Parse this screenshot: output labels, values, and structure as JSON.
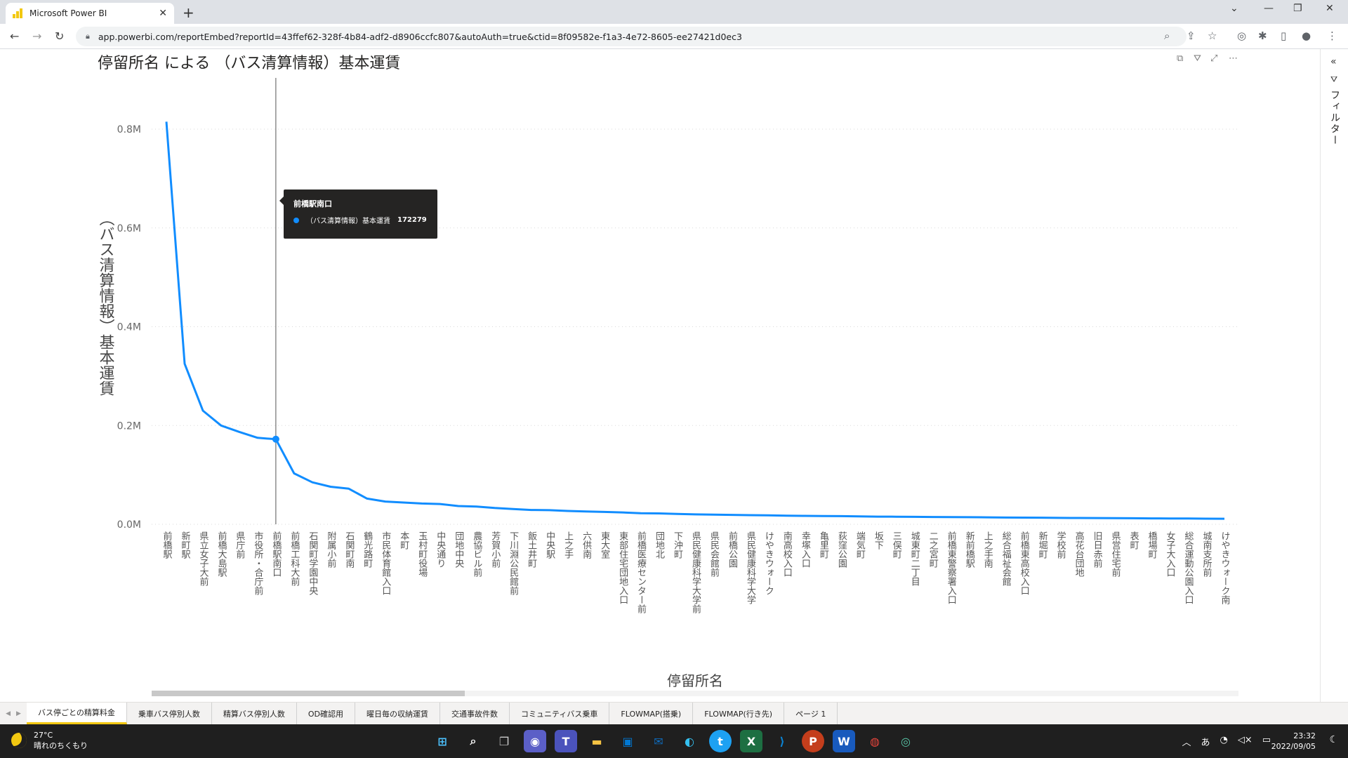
{
  "browser": {
    "tab_title": "Microsoft Power BI",
    "tab_close": "✕",
    "new_tab": "+",
    "url": "app.powerbi.com/reportEmbed?reportId=43ffef62-328f-4b84-adf2-d8906ccfc807&autoAuth=true&ctid=8f09582e-f1a3-4e72-8605-ee27421d0ec3"
  },
  "report": {
    "filter_label": "フィルター"
  },
  "tooltip": {
    "title": "前橋駅南口",
    "series_label": "（バス清算情報）基本運賃",
    "value": "172279"
  },
  "chart_data": {
    "type": "line",
    "title": "停留所名 による （バス清算情報）基本運賃",
    "xlabel": "停留所名",
    "ylabel": "（バス清算情報）基本運賃",
    "ylim": [
      0,
      800000
    ],
    "yticks": [
      "0.0M",
      "0.2M",
      "0.4M",
      "0.6M",
      "0.8M"
    ],
    "ytick_values": [
      0,
      200000,
      400000,
      600000,
      800000
    ],
    "grid": true,
    "color": "#118dff",
    "highlight_index": 6,
    "categories": [
      "前橋駅",
      "新町駅",
      "県立女子大前",
      "前橋大島駅",
      "県庁前",
      "市役所・合庁前",
      "前橋駅南口",
      "前橋工科大前",
      "石関町学園中央",
      "附属小前",
      "石関町南",
      "鶴光路町",
      "市民体育館入口",
      "本町",
      "玉村町役場",
      "中央通り",
      "団地中央",
      "農協ビル前",
      "芳賀小前",
      "下川淵公民館前",
      "飯土井町",
      "中央駅",
      "上之手",
      "六供南",
      "東大室",
      "東部住宅団地入口",
      "前橋医療センター前",
      "団地北",
      "下沖町",
      "県民健康科学大学前",
      "県民会館前",
      "前橋公園",
      "県民健康科学大学",
      "けやきウォーク",
      "南高校入口",
      "幸塚入口",
      "亀里町",
      "荻窪公園",
      "端気町",
      "坂下",
      "三俣町",
      "城東町二丁目",
      "二之宮町",
      "前橋東警察署入口",
      "新前橋駅",
      "上之手南",
      "総合福祉会館",
      "前橋東高校入口",
      "新堀町",
      "学校前",
      "高花台団地",
      "旧日赤前",
      "県営住宅前",
      "表町",
      "橋場町",
      "女子大入口",
      "総合運動公園入口",
      "城南支所前",
      "けやきウォーク南"
    ],
    "values": [
      815000,
      325000,
      230000,
      200000,
      187000,
      175000,
      172279,
      103000,
      85000,
      76000,
      72000,
      52000,
      46000,
      44000,
      42000,
      41000,
      37000,
      36000,
      33000,
      31000,
      29000,
      28500,
      27000,
      26000,
      25000,
      24000,
      22500,
      22000,
      21000,
      20000,
      19500,
      19000,
      18500,
      18000,
      17500,
      17000,
      16800,
      16500,
      16000,
      15500,
      15300,
      15000,
      14800,
      14500,
      14300,
      14000,
      13700,
      13500,
      13300,
      13000,
      12800,
      12600,
      12400,
      12200,
      12000,
      11800,
      11600,
      11400,
      11200
    ]
  },
  "pages": [
    "バス停ごとの精算料金",
    "乗車バス停別人数",
    "精算バス停別人数",
    "OD確認用",
    "曜日毎の収納運賃",
    "交通事故件数",
    "コミュニティバス乗車",
    "FLOWMAP(搭乗)",
    "FLOWMAP(行き先)",
    "ページ 1"
  ],
  "taskbar": {
    "temperature": "27°C",
    "weather": "晴れのちくもり",
    "time": "23:32",
    "date": "2022/09/05",
    "ime": "あ"
  }
}
